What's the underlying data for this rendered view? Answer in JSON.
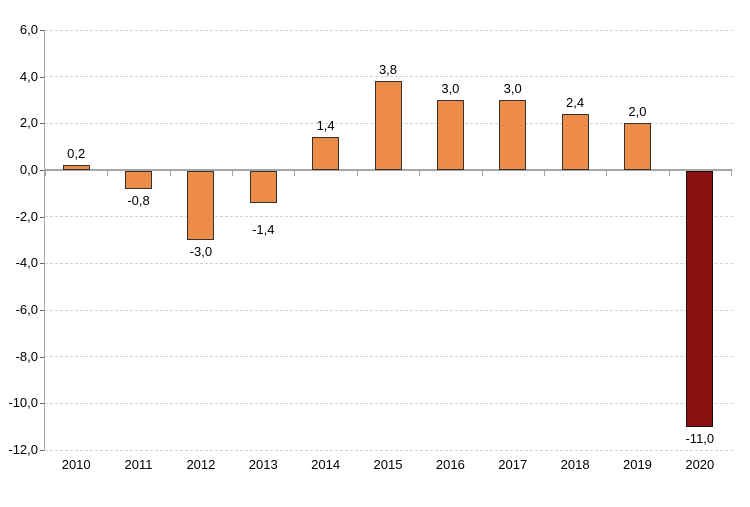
{
  "chart_data": {
    "type": "bar",
    "title": "",
    "xlabel": "",
    "ylabel": "",
    "categories": [
      "2010",
      "2011",
      "2012",
      "2013",
      "2014",
      "2015",
      "2016",
      "2017",
      "2018",
      "2019",
      "2020"
    ],
    "values": [
      0.2,
      -0.8,
      -3.0,
      -1.4,
      1.4,
      3.8,
      3.0,
      3.0,
      2.4,
      2.0,
      -11.0
    ],
    "value_labels": [
      "0,2",
      "-0,8",
      "-3,0",
      "-1,4",
      "1,4",
      "3,8",
      "3,0",
      "3,0",
      "2,4",
      "2,0",
      "-11,0"
    ],
    "y_tick_labels": [
      "6,0",
      "4,0",
      "2,0",
      "0,0",
      "-2,0",
      "-4,0",
      "-6,0",
      "-8,0",
      "-10,0",
      "-12,0"
    ],
    "y_tick_values": [
      6,
      4,
      2,
      0,
      -2,
      -4,
      -6,
      -8,
      -10,
      -12
    ],
    "ylim": [
      -12,
      6
    ],
    "y_step": 2,
    "decimal_separator": ",",
    "grid": "horizontal-dashed",
    "legend": "none",
    "highlight_index": 10,
    "colors": {
      "bar_fill": "#EC8C48",
      "bar_border": "#333333",
      "highlight_fill": "#8C1212",
      "highlight_border": "#111111",
      "gridline": "#C9D5E3",
      "axis_line": "#A6A6A6",
      "tick": "#666666",
      "label_text": "#000000",
      "background": "#FFFFFF"
    }
  }
}
